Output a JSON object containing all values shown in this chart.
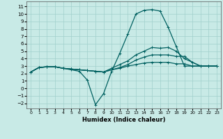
{
  "xlabel": "Humidex (Indice chaleur)",
  "xlim": [
    -0.5,
    23.5
  ],
  "ylim": [
    -2.7,
    11.7
  ],
  "xticks": [
    0,
    1,
    2,
    3,
    4,
    5,
    6,
    7,
    8,
    9,
    10,
    11,
    12,
    13,
    14,
    15,
    16,
    17,
    18,
    19,
    20,
    21,
    22,
    23
  ],
  "yticks": [
    -2,
    -1,
    0,
    1,
    2,
    3,
    4,
    5,
    6,
    7,
    8,
    9,
    10,
    11
  ],
  "bg_color": "#c8eae6",
  "grid_color": "#a0d0cc",
  "line_color": "#006060",
  "lines": [
    [
      2.2,
      2.8,
      2.9,
      2.9,
      2.7,
      2.5,
      2.3,
      1.1,
      -2.2,
      -0.7,
      2.3,
      4.7,
      7.3,
      10.0,
      10.5,
      10.6,
      10.4,
      8.2,
      5.6,
      3.0,
      3.0,
      3.0,
      3.0,
      3.0
    ],
    [
      2.2,
      2.8,
      2.9,
      2.9,
      2.7,
      2.6,
      2.5,
      2.4,
      2.3,
      2.2,
      2.7,
      3.2,
      3.7,
      4.5,
      5.0,
      5.5,
      5.4,
      5.5,
      5.0,
      4.0,
      3.5,
      3.0,
      3.0,
      3.0
    ],
    [
      2.2,
      2.8,
      2.9,
      2.9,
      2.7,
      2.6,
      2.5,
      2.4,
      2.3,
      2.2,
      2.5,
      2.8,
      3.2,
      3.8,
      4.2,
      4.5,
      4.5,
      4.5,
      4.3,
      4.3,
      3.5,
      3.0,
      3.0,
      3.0
    ],
    [
      2.2,
      2.8,
      2.9,
      2.9,
      2.7,
      2.6,
      2.5,
      2.4,
      2.3,
      2.2,
      2.5,
      2.7,
      3.0,
      3.2,
      3.4,
      3.5,
      3.5,
      3.5,
      3.3,
      3.3,
      3.0,
      3.0,
      3.0,
      3.0
    ]
  ]
}
